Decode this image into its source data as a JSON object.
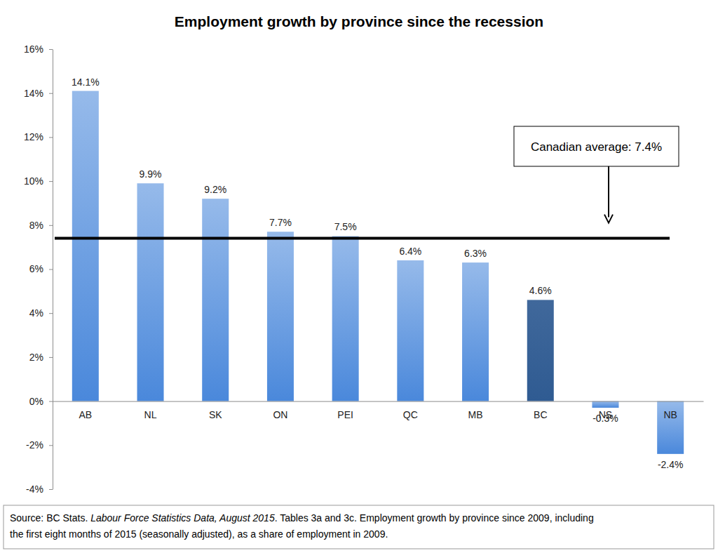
{
  "chart_data": {
    "type": "bar",
    "title": "Employment growth by province since the recession",
    "categories": [
      "AB",
      "NL",
      "SK",
      "ON",
      "PEI",
      "QC",
      "MB",
      "BC",
      "NS",
      "NB"
    ],
    "values": [
      14.1,
      9.9,
      9.2,
      7.7,
      7.5,
      6.4,
      6.3,
      4.6,
      -0.3,
      -2.4
    ],
    "value_labels": [
      "14.1%",
      "9.9%",
      "9.2%",
      "7.7%",
      "7.5%",
      "6.4%",
      "6.3%",
      "4.6%",
      "-0.3%",
      "-2.4%"
    ],
    "colors": [
      "#4a88db",
      "#4a88db",
      "#4a88db",
      "#4a88db",
      "#4a88db",
      "#4a88db",
      "#4a88db",
      "#2f5b92",
      "#4a88db",
      "#4a88db"
    ],
    "data_labels": true,
    "ylim": [
      -4,
      16
    ],
    "yticks": [
      {
        "value": -4,
        "label": "-4%"
      },
      {
        "value": -2,
        "label": "-2%"
      },
      {
        "value": 0,
        "label": "0%"
      },
      {
        "value": 2,
        "label": "2%"
      },
      {
        "value": 4,
        "label": "4%"
      },
      {
        "value": 6,
        "label": "6%"
      },
      {
        "value": 8,
        "label": "8%"
      },
      {
        "value": 10,
        "label": "10%"
      },
      {
        "value": 12,
        "label": "12%"
      },
      {
        "value": 14,
        "label": "14%"
      },
      {
        "value": 16,
        "label": "16%"
      }
    ],
    "grid": false,
    "reference_line": {
      "value": 7.4,
      "label": "Canadian average: 7.4%"
    },
    "source": [
      [
        "Source: BC Stats. ",
        "Labour Force Statistics Data, August 2015",
        ". Tables 3a and 3c. Employment growth by province since 2009, including"
      ],
      [
        "the first eight months of 2015 (seasonally adjusted), as a share of employment in 2009."
      ]
    ]
  }
}
